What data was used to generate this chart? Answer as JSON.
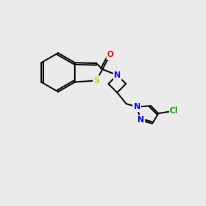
{
  "background_color": "#ebebeb",
  "bond_color": "#000000",
  "bond_width": 1.5,
  "atoms": {
    "S": {
      "color": "#cccc00",
      "fontsize": 8.5,
      "fontweight": "bold"
    },
    "O": {
      "color": "#ff0000",
      "fontsize": 8.5,
      "fontweight": "bold"
    },
    "N": {
      "color": "#0000ff",
      "fontsize": 8.5,
      "fontweight": "bold"
    },
    "Cl": {
      "color": "#00aa00",
      "fontsize": 8.5,
      "fontweight": "bold"
    }
  },
  "xlim": [
    0,
    10
  ],
  "ylim": [
    0,
    10
  ]
}
